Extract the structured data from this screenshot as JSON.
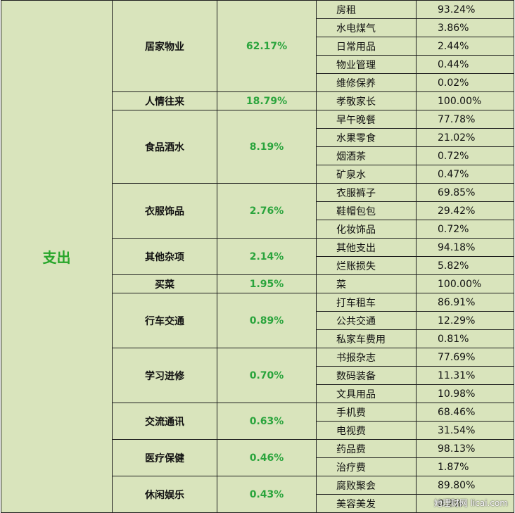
{
  "table": {
    "top_label": "支出",
    "groups": [
      {
        "name": "居家物业",
        "pct": "62.17%",
        "items": [
          {
            "name": "房租",
            "pct": "93.24%"
          },
          {
            "name": "水电煤气",
            "pct": "3.86%"
          },
          {
            "name": "日常用品",
            "pct": "2.44%"
          },
          {
            "name": "物业管理",
            "pct": "0.44%"
          },
          {
            "name": "维修保养",
            "pct": "0.02%"
          }
        ]
      },
      {
        "name": "人情往来",
        "pct": "18.79%",
        "items": [
          {
            "name": "孝敬家长",
            "pct": "100.00%"
          }
        ]
      },
      {
        "name": "食品酒水",
        "pct": "8.19%",
        "items": [
          {
            "name": "早午晚餐",
            "pct": "77.78%"
          },
          {
            "name": "水果零食",
            "pct": "21.02%"
          },
          {
            "name": "烟酒茶",
            "pct": "0.72%"
          },
          {
            "name": "矿泉水",
            "pct": "0.47%"
          }
        ]
      },
      {
        "name": "衣服饰品",
        "pct": "2.76%",
        "items": [
          {
            "name": "衣服裤子",
            "pct": "69.85%"
          },
          {
            "name": "鞋帽包包",
            "pct": "29.42%"
          },
          {
            "name": "化妆饰品",
            "pct": "0.72%"
          }
        ]
      },
      {
        "name": "其他杂项",
        "pct": "2.14%",
        "items": [
          {
            "name": "其他支出",
            "pct": "94.18%"
          },
          {
            "name": "烂账损失",
            "pct": "5.82%"
          }
        ]
      },
      {
        "name": "买菜",
        "pct": "1.95%",
        "items": [
          {
            "name": "菜",
            "pct": "100.00%"
          }
        ]
      },
      {
        "name": "行车交通",
        "pct": "0.89%",
        "items": [
          {
            "name": "打车租车",
            "pct": "86.91%"
          },
          {
            "name": "公共交通",
            "pct": "12.29%"
          },
          {
            "name": "私家车费用",
            "pct": "0.81%"
          }
        ]
      },
      {
        "name": "学习进修",
        "pct": "0.70%",
        "items": [
          {
            "name": "书报杂志",
            "pct": "77.69%"
          },
          {
            "name": "数码装备",
            "pct": "11.31%"
          },
          {
            "name": "文具用品",
            "pct": "10.98%"
          }
        ]
      },
      {
        "name": "交流通讯",
        "pct": "0.63%",
        "items": [
          {
            "name": "手机费",
            "pct": "68.46%"
          },
          {
            "name": "电视费",
            "pct": "31.54%"
          }
        ]
      },
      {
        "name": "医疗保健",
        "pct": "0.46%",
        "items": [
          {
            "name": "药品费",
            "pct": "98.13%"
          },
          {
            "name": "治疗费",
            "pct": "1.87%"
          }
        ]
      },
      {
        "name": "休闲娱乐",
        "pct": "0.43%",
        "items": [
          {
            "name": "腐败聚会",
            "pct": "89.80%"
          },
          {
            "name": "美容美发",
            "pct": "0.2%"
          }
        ]
      }
    ]
  },
  "watermark": "她理财网 licai.com"
}
